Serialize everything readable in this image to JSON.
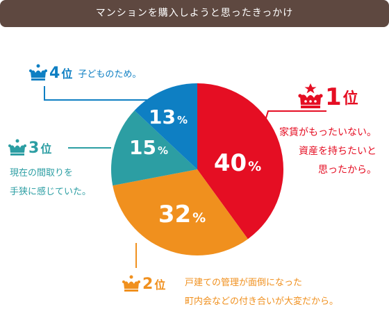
{
  "header": {
    "title": "マンションを購入しようと思ったきっかけ"
  },
  "colors": {
    "red": "#e50e23",
    "orange": "#f0901e",
    "teal": "#2c9ea3",
    "blue": "#0e7fc3",
    "leader": "#c5c5c5",
    "banner": "#5e4840"
  },
  "chart_data": {
    "type": "pie",
    "title": "マンションを購入しようと思ったきっかけ",
    "slices": [
      {
        "label": "1位",
        "value": 40,
        "display": "40",
        "reason": [
          "家賃がもったいない。",
          "資産を持ちたいと",
          "思ったから。"
        ],
        "color": "#e50e23"
      },
      {
        "label": "2位",
        "value": 32,
        "display": "32",
        "reason": [
          "戸建ての管理が面倒になった",
          "町内会などの付き合いが大変だから。"
        ],
        "color": "#f0901e"
      },
      {
        "label": "3位",
        "value": 15,
        "display": "15",
        "reason": [
          "現在の間取りを",
          "手狭に感じていた。"
        ],
        "color": "#2c9ea3"
      },
      {
        "label": "4位",
        "value": 13,
        "display": "13",
        "reason": [
          "子どものため。"
        ],
        "color": "#0e7fc3"
      }
    ],
    "unit": "%"
  },
  "ranks": [
    {
      "num": "1",
      "pos": "位"
    },
    {
      "num": "2",
      "pos": "位"
    },
    {
      "num": "3",
      "pos": "位"
    },
    {
      "num": "4",
      "pos": "位"
    }
  ]
}
